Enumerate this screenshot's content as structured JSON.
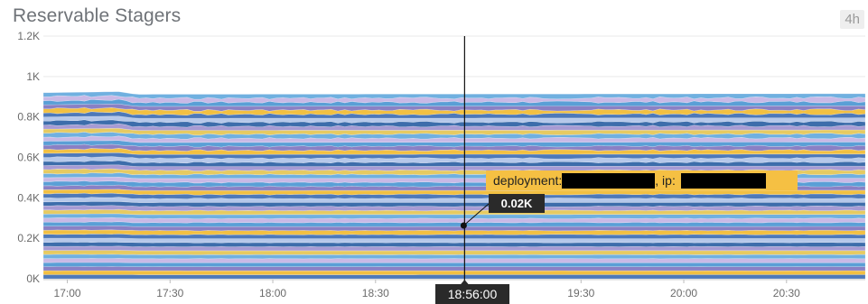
{
  "widget": {
    "title": "Reservable Stagers",
    "time_range": "4h"
  },
  "colors": {
    "stack_palette": [
      "#4e79b9",
      "#f2c042",
      "#8a80c4",
      "#5a9fd6",
      "#c9b9e6",
      "#70b0e0",
      "#e6ca62",
      "#a79bd4",
      "#3d6dab",
      "#b6c8ea"
    ]
  },
  "hover": {
    "tooltip_label_1": "deployment:",
    "tooltip_label_2": ", ip:",
    "value": "0.02K",
    "time": "18:56:00"
  },
  "chart_data": {
    "type": "area",
    "stacked": true,
    "title": "Reservable Stagers",
    "xlabel": "",
    "ylabel": "",
    "x_ticks": [
      "17:00",
      "17:30",
      "18:00",
      "18:30",
      "19:30",
      "20:00",
      "20:30"
    ],
    "y_ticks": [
      "0K",
      "0.2K",
      "0.4K",
      "0.6K",
      "0.8K",
      "1K",
      "1.2K"
    ],
    "ylim": [
      0,
      1200
    ],
    "x_range": [
      "16:53",
      "20:53"
    ],
    "series_count": 46,
    "series_value_each": 20,
    "stack_total": 920,
    "stack_total_note_times": [
      "16:53",
      "17:15",
      "17:20",
      "20:53"
    ],
    "stack_total_values": [
      920,
      925,
      912,
      915
    ],
    "grid": true,
    "legend": "none",
    "hover": {
      "time": "18:56:00",
      "value": "0.02K"
    }
  }
}
